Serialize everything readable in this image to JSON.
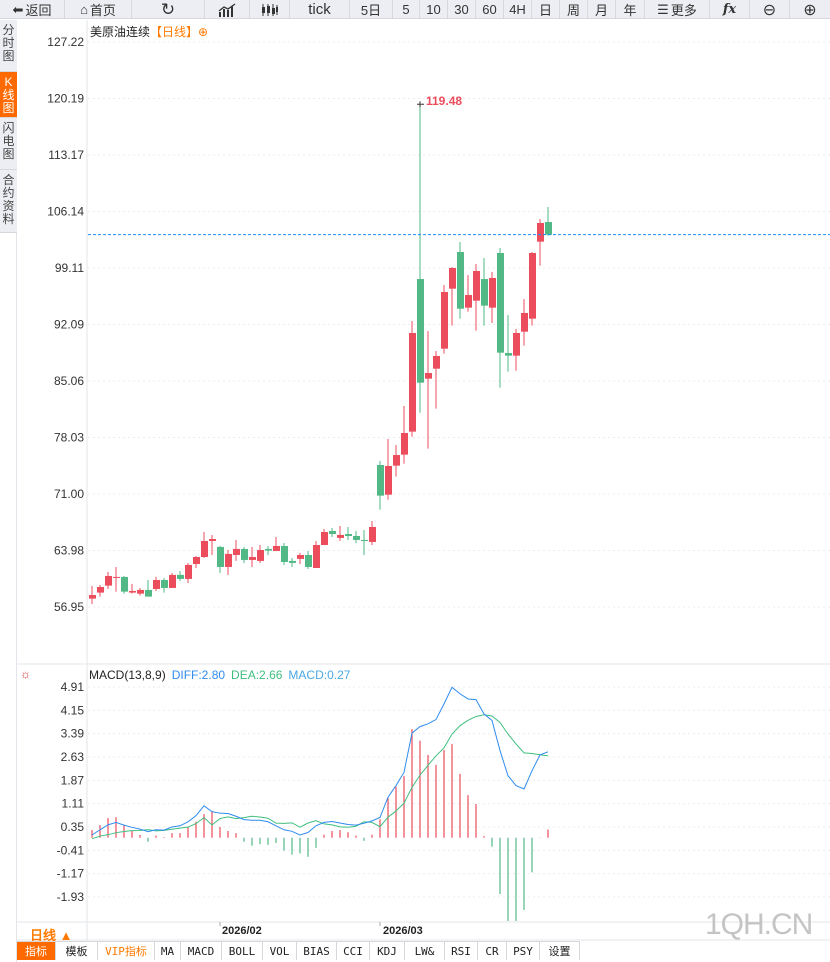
{
  "toolbar": {
    "back": "返回",
    "home": "首页",
    "tick": "tick",
    "day5": "5日",
    "m5": "5",
    "m10": "10",
    "m30": "30",
    "m60": "60",
    "h4": "4H",
    "day": "日",
    "week": "周",
    "month": "月",
    "year": "年",
    "more": "更多"
  },
  "left_tabs": [
    "分时图",
    "K线图",
    "闪电图",
    "合约资料"
  ],
  "title": {
    "name": "美原油连续",
    "period_tag": "【日线】"
  },
  "y_axis": [
    "127.22",
    "120.19",
    "113.17",
    "106.14",
    "99.11",
    "92.09",
    "85.06",
    "78.03",
    "71.00",
    "63.98",
    "56.95"
  ],
  "macd_axis": [
    "4.91",
    "4.15",
    "3.39",
    "2.63",
    "1.87",
    "1.11",
    "0.35",
    "-0.41",
    "-1.17",
    "-1.93"
  ],
  "macd_header": {
    "name": "MACD(13,8,9)",
    "diff": "DIFF:2.80",
    "dea": "DEA:2.66",
    "macd": "MACD:0.27"
  },
  "high_label": "119.48",
  "last_price": 103.26,
  "period_selector": "日线 ▲",
  "dates": [
    {
      "label": "2026/02",
      "index": 16
    },
    {
      "label": "2026/03",
      "index": 36
    }
  ],
  "watermark": "1QH.CN",
  "bottom_tabs": [
    "指标",
    "模板",
    "VIP指标",
    "MA",
    "MACD",
    "BOLL",
    "VOL",
    "BIAS",
    "CCI",
    "KDJ",
    "LW&",
    "RSI",
    "CR",
    "PSY",
    "设置"
  ],
  "colors": {
    "up": "#eb4d5c",
    "down": "#52b986",
    "dif": "#2f8cf0",
    "dea": "#3fbf7f",
    "accent": "#ff6a00"
  },
  "chart_data": {
    "type": "candlestick",
    "price_range": [
      56.95,
      127.22
    ],
    "ohlc": [
      [
        57.99,
        58.44,
        59.57,
        57.33
      ],
      [
        58.74,
        59.44,
        59.69,
        58.24
      ],
      [
        59.61,
        60.81,
        61.31,
        59.19
      ],
      [
        60.6,
        60.69,
        61.93,
        58.86
      ],
      [
        60.69,
        58.86,
        60.81,
        58.61
      ],
      [
        58.74,
        58.94,
        59.82,
        58.61
      ],
      [
        58.61,
        59.07,
        59.32,
        58.37
      ],
      [
        59.07,
        58.24,
        60.31,
        58.24
      ],
      [
        59.19,
        60.31,
        60.69,
        58.94
      ],
      [
        60.31,
        59.32,
        60.56,
        58.74
      ],
      [
        59.32,
        60.94,
        61.18,
        59.32
      ],
      [
        60.94,
        60.44,
        61.43,
        60.19
      ],
      [
        60.44,
        62.18,
        62.43,
        59.94
      ],
      [
        62.3,
        63.17,
        63.3,
        61.8
      ],
      [
        63.17,
        65.16,
        66.28,
        63.05
      ],
      [
        65.16,
        65.41,
        65.91,
        63.42
      ],
      [
        64.42,
        61.93,
        64.54,
        61.18
      ],
      [
        61.93,
        63.55,
        64.04,
        60.94
      ],
      [
        63.42,
        64.17,
        65.29,
        62.68
      ],
      [
        64.17,
        62.8,
        64.42,
        62.43
      ],
      [
        62.8,
        63.17,
        64.42,
        61.93
      ],
      [
        62.68,
        64.04,
        64.66,
        62.43
      ],
      [
        64.17,
        63.96,
        64.54,
        63.42
      ],
      [
        63.92,
        64.54,
        65.66,
        63.92
      ],
      [
        64.54,
        62.55,
        64.91,
        62.18
      ],
      [
        62.68,
        62.43,
        63.05,
        61.93
      ],
      [
        62.93,
        63.42,
        63.67,
        62.3
      ],
      [
        63.42,
        61.93,
        63.92,
        61.68
      ],
      [
        61.8,
        64.66,
        65.16,
        61.8
      ],
      [
        64.66,
        66.28,
        66.65,
        64.66
      ],
      [
        66.4,
        66.03,
        66.78,
        65.66
      ],
      [
        65.54,
        65.91,
        67.03,
        65.16
      ],
      [
        66.03,
        65.78,
        66.9,
        65.29
      ],
      [
        65.78,
        65.29,
        66.4,
        64.91
      ],
      [
        65.29,
        65.16,
        66.53,
        63.42
      ],
      [
        65.04,
        66.9,
        67.65,
        64.66
      ],
      [
        74.61,
        70.8,
        75.11,
        69.06
      ],
      [
        70.92,
        74.49,
        77.84,
        70.3
      ],
      [
        74.53,
        75.85,
        77.1,
        73.16
      ],
      [
        75.9,
        78.59,
        81.95,
        74.78
      ],
      [
        78.76,
        91.03,
        92.52,
        78.13
      ],
      [
        97.74,
        84.85,
        119.48,
        81.12
      ],
      [
        85.35,
        86.05,
        91.28,
        76.64
      ],
      [
        86.59,
        88.17,
        88.79,
        81.62
      ],
      [
        89.08,
        96.13,
        97.0,
        88.46
      ],
      [
        96.54,
        99.11,
        99.24,
        91.94
      ],
      [
        101.1,
        94.05,
        102.35,
        92.81
      ],
      [
        94.18,
        95.75,
        98.24,
        93.68
      ],
      [
        95.05,
        98.74,
        99.61,
        91.32
      ],
      [
        97.74,
        94.43,
        100.36,
        91.94
      ],
      [
        94.18,
        97.87,
        98.61,
        92.27
      ],
      [
        100.98,
        88.58,
        101.6,
        84.23
      ],
      [
        88.54,
        88.21,
        93.27,
        86.22
      ],
      [
        88.21,
        91.03,
        91.53,
        86.34
      ],
      [
        91.19,
        93.52,
        95.26,
        89.45
      ],
      [
        92.81,
        100.98,
        101.1,
        91.94
      ],
      [
        102.39,
        104.71,
        105.21,
        99.4
      ],
      [
        104.83,
        103.26,
        106.7,
        103.13
      ]
    ],
    "macd_range": [
      -1.93,
      4.91
    ],
    "dif": [
      0.09,
      0.26,
      0.42,
      0.5,
      0.41,
      0.34,
      0.28,
      0.2,
      0.26,
      0.25,
      0.35,
      0.39,
      0.52,
      0.72,
      1.04,
      0.85,
      0.8,
      0.79,
      0.7,
      0.59,
      0.57,
      0.57,
      0.52,
      0.39,
      0.26,
      0.21,
      0.09,
      0.17,
      0.39,
      0.5,
      0.53,
      0.48,
      0.43,
      0.41,
      0.47,
      0.55,
      0.66,
      1.32,
      1.7,
      2.13,
      3.41,
      3.62,
      3.71,
      3.85,
      4.36,
      4.9,
      4.69,
      4.52,
      4.5,
      4.03,
      3.82,
      2.84,
      2.02,
      1.7,
      1.59,
      2.18,
      2.7,
      2.8
    ],
    "macd": [
      0.25,
      0.41,
      0.64,
      0.67,
      0.41,
      0.22,
      0.09,
      -0.13,
      0.07,
      0.02,
      0.15,
      0.15,
      0.35,
      0.52,
      0.77,
      0.87,
      0.35,
      0.22,
      0.15,
      -0.13,
      -0.26,
      -0.21,
      -0.23,
      -0.17,
      -0.42,
      -0.55,
      -0.51,
      -0.62,
      -0.33,
      0.1,
      0.22,
      0.25,
      0.18,
      0.07,
      -0.1,
      0.1,
      0.6,
      1.3,
      1.66,
      2.01,
      3.54,
      3.16,
      2.7,
      2.37,
      2.86,
      3.05,
      2.08,
      1.39,
      1.1,
      0.05,
      -0.29,
      -1.83,
      -2.71,
      -2.71,
      -2.35,
      -1.13,
      -0.01,
      0.27
    ]
  }
}
